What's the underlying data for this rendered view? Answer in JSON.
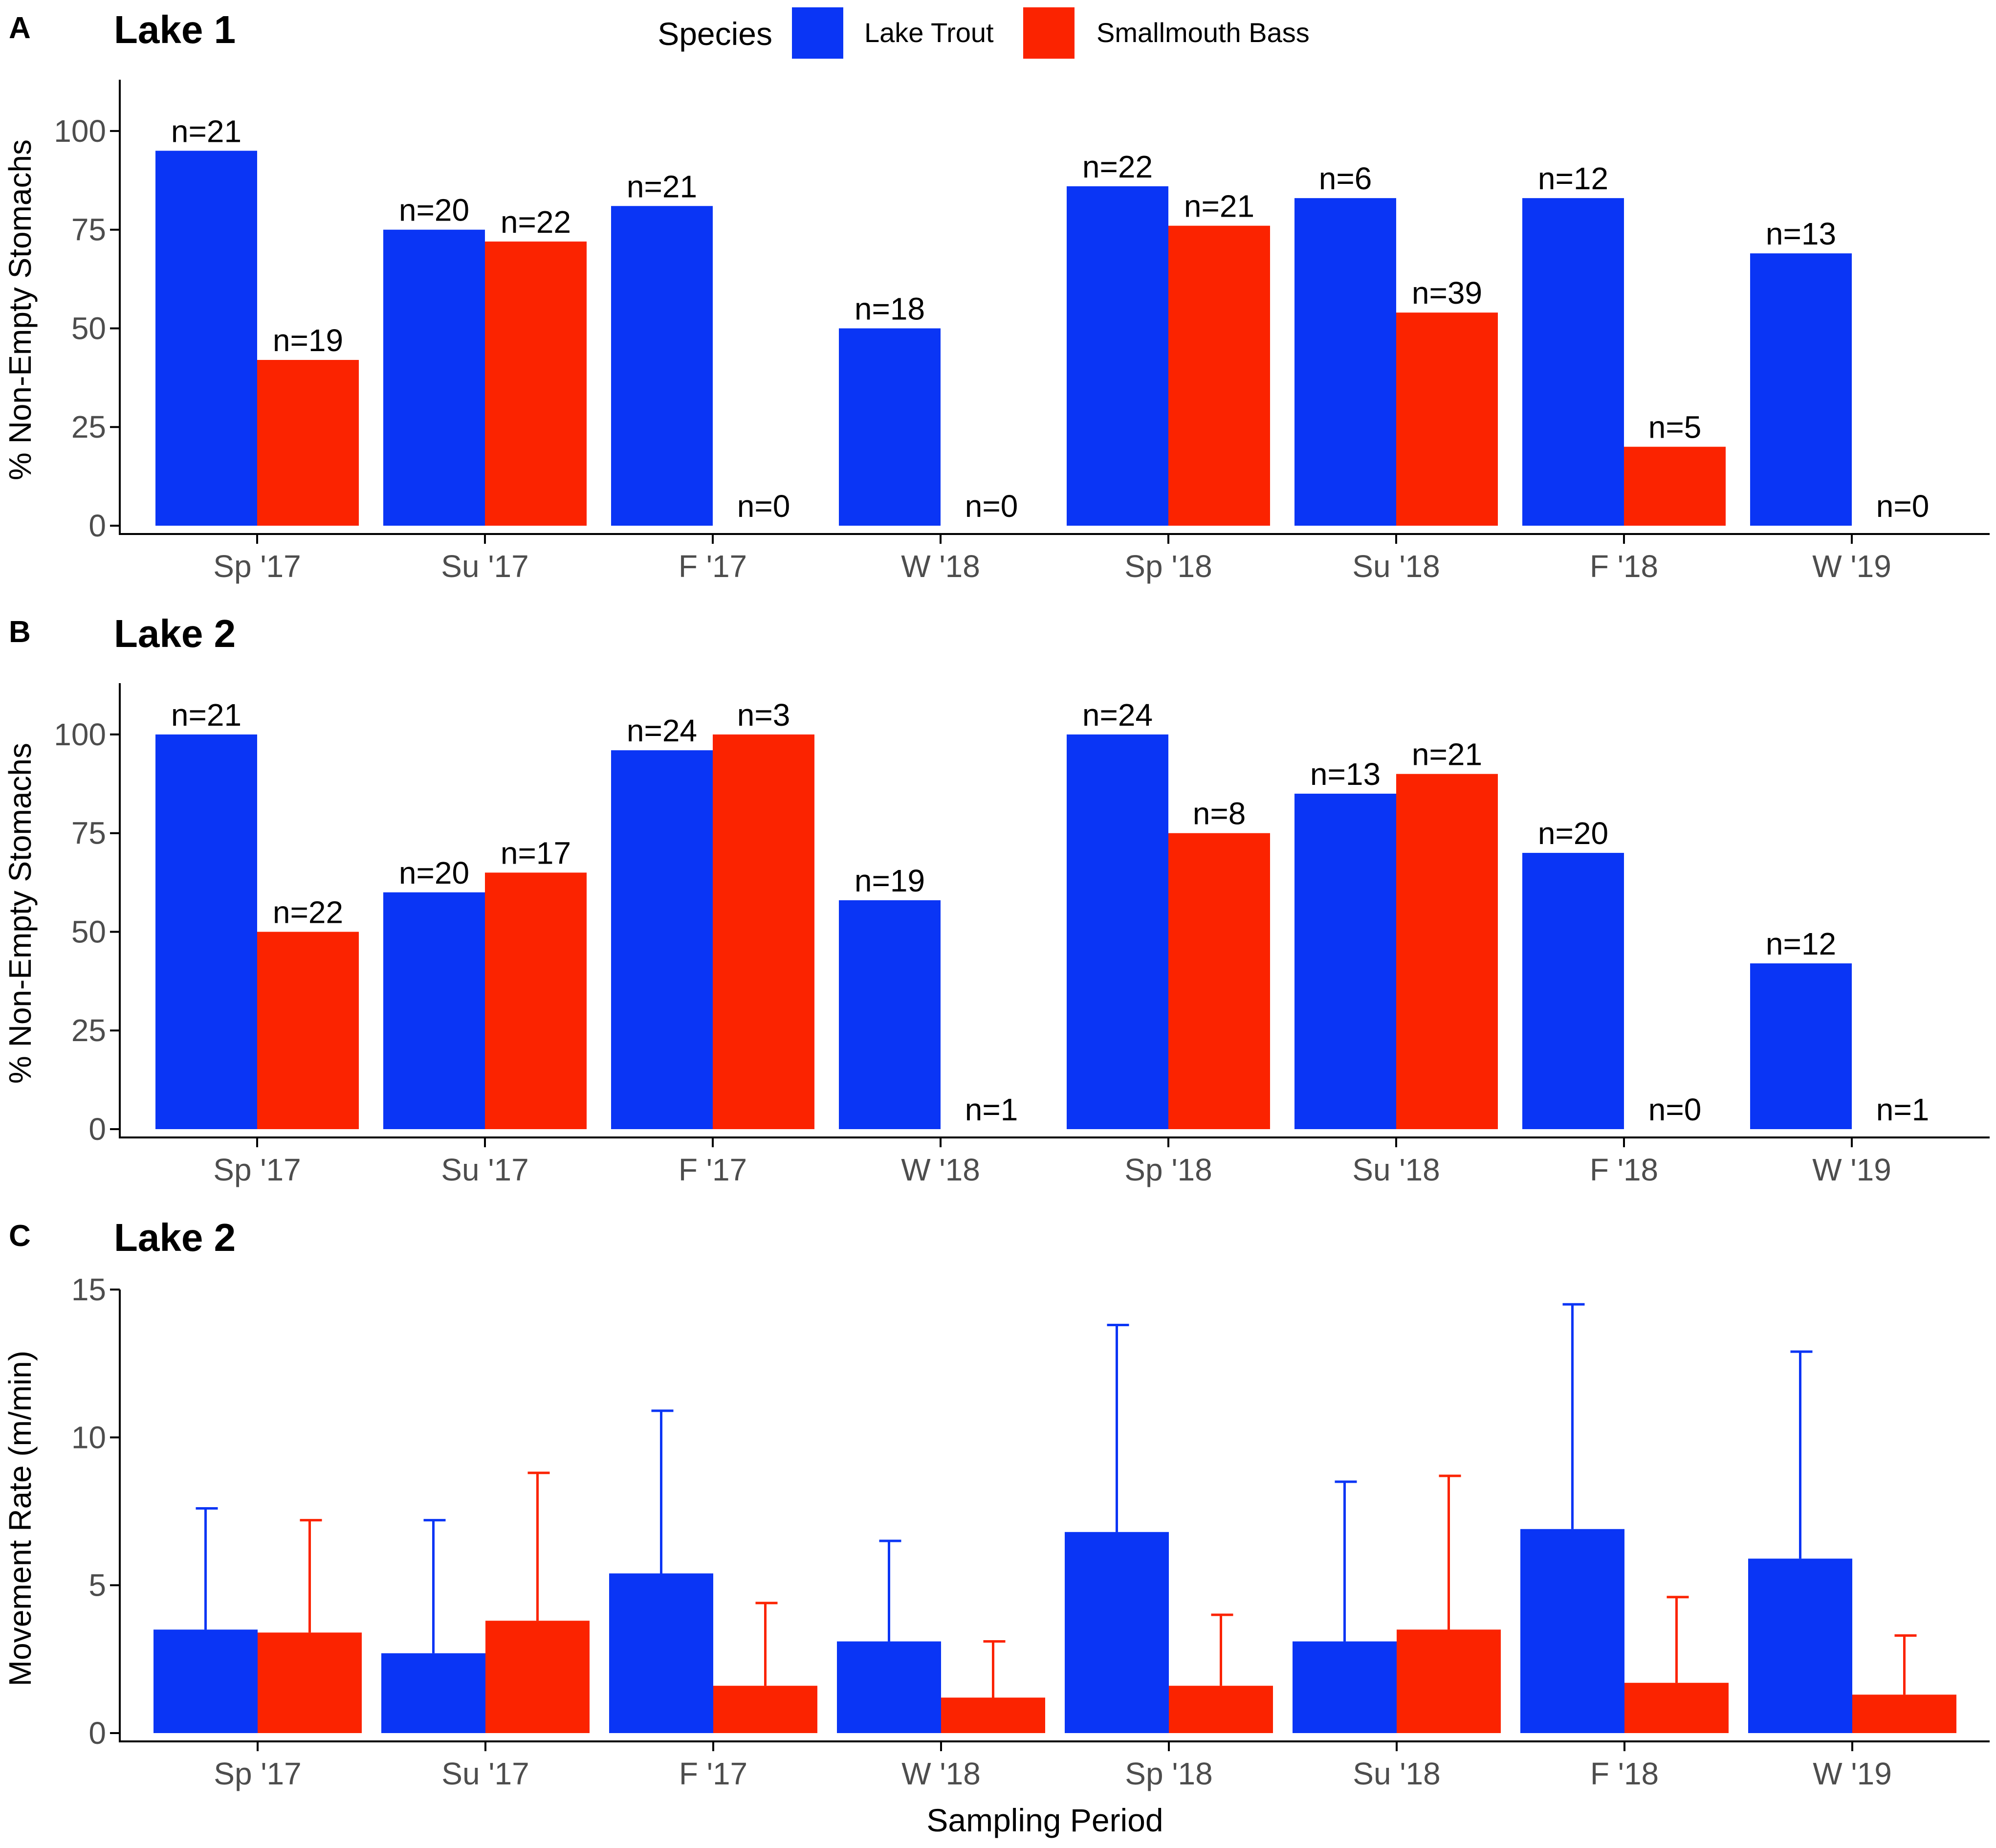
{
  "legend": {
    "title": "Species",
    "entries": [
      {
        "label": "Lake Trout",
        "color": "#0a35f5"
      },
      {
        "label": "Smallmouth Bass",
        "color": "#fb2300"
      }
    ]
  },
  "colors": {
    "lake_trout": "#0a35f5",
    "smallmouth_bass": "#fb2300",
    "axis": "#000000",
    "tick_label": "#4d4d4d"
  },
  "chart_data": [
    {
      "type": "bar",
      "panel_letter": "A",
      "title": "Lake 1",
      "xlabel": "",
      "ylabel": "% Non-Empty Stomachs",
      "ylim": [
        0,
        113
      ],
      "yticks": [
        0,
        25,
        50,
        75,
        100
      ],
      "categories": [
        "Sp '17",
        "Su '17",
        "F '17",
        "W '18",
        "Sp '18",
        "Su '18",
        "F '18",
        "W '19"
      ],
      "series": [
        {
          "name": "Lake Trout",
          "values": [
            95,
            75,
            81,
            50,
            86,
            83,
            83,
            69
          ],
          "labels": [
            "n=21",
            "n=20",
            "n=21",
            "n=18",
            "n=22",
            "n=6",
            "n=12",
            "n=13"
          ]
        },
        {
          "name": "Smallmouth Bass",
          "values": [
            42,
            72,
            0,
            0,
            76,
            54,
            20,
            0
          ],
          "labels": [
            "n=19",
            "n=22",
            "n=0",
            "n=0",
            "n=21",
            "n=39",
            "n=5",
            "n=0"
          ]
        }
      ]
    },
    {
      "type": "bar",
      "panel_letter": "B",
      "title": "Lake 2",
      "xlabel": "",
      "ylabel": "% Non-Empty Stomachs",
      "ylim": [
        0,
        113
      ],
      "yticks": [
        0,
        25,
        50,
        75,
        100
      ],
      "categories": [
        "Sp '17",
        "Su '17",
        "F '17",
        "W '18",
        "Sp '18",
        "Su '18",
        "F '18",
        "W '19"
      ],
      "series": [
        {
          "name": "Lake Trout",
          "values": [
            100,
            60,
            96,
            58,
            100,
            85,
            70,
            42
          ],
          "labels": [
            "n=21",
            "n=20",
            "n=24",
            "n=19",
            "n=24",
            "n=13",
            "n=20",
            "n=12"
          ]
        },
        {
          "name": "Smallmouth Bass",
          "values": [
            50,
            65,
            100,
            0,
            75,
            90,
            0,
            0
          ],
          "labels": [
            "n=22",
            "n=17",
            "n=3",
            "n=1",
            "n=8",
            "n=21",
            "n=0",
            "n=1"
          ]
        }
      ]
    },
    {
      "type": "bar",
      "panel_letter": "C",
      "title": "Lake 2",
      "xlabel": "Sampling Period",
      "ylabel": "Movement Rate (m/min)",
      "ylim": [
        0,
        15
      ],
      "yticks": [
        0,
        5,
        10,
        15
      ],
      "categories": [
        "Sp '17",
        "Su '17",
        "F '17",
        "W '18",
        "Sp '18",
        "Su '18",
        "F '18",
        "W '19"
      ],
      "series": [
        {
          "name": "Lake Trout",
          "values": [
            3.5,
            2.7,
            5.4,
            3.1,
            6.8,
            3.1,
            6.9,
            5.9
          ],
          "error_upper": [
            7.6,
            7.2,
            10.9,
            6.5,
            13.8,
            8.5,
            14.5,
            12.9
          ]
        },
        {
          "name": "Smallmouth Bass",
          "values": [
            3.4,
            3.8,
            1.6,
            1.2,
            1.6,
            3.5,
            1.7,
            1.3
          ],
          "error_upper": [
            7.2,
            8.8,
            4.4,
            3.1,
            4.0,
            8.7,
            4.6,
            3.3
          ]
        }
      ]
    }
  ]
}
